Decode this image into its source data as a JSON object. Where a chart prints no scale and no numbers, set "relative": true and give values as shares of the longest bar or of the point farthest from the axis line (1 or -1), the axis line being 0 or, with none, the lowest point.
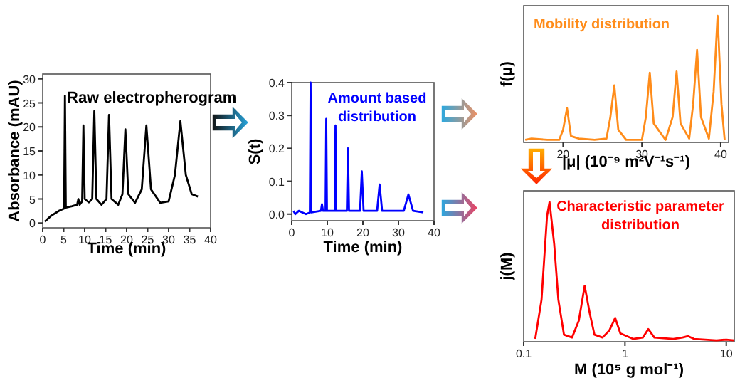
{
  "chart_data": [
    {
      "type": "line",
      "title": "Raw electropherogram",
      "xlabel": "Time (min)",
      "ylabel": "Absorbance (mAU)",
      "xlim": [
        0,
        40
      ],
      "ylim": [
        -1,
        31
      ],
      "xticks": [
        0,
        5,
        10,
        15,
        20,
        25,
        30,
        35,
        40
      ],
      "yticks": [
        0,
        5,
        10,
        15,
        20,
        25,
        30
      ],
      "series": [
        {
          "color": "#000000",
          "x": [
            0.5,
            2,
            4,
            5.1,
            5.3,
            5.5,
            7,
            8.2,
            8.5,
            8.8,
            9.4,
            9.7,
            10,
            11,
            11.8,
            12.3,
            12.8,
            14,
            15.2,
            15.8,
            16.4,
            18,
            19,
            19.7,
            20.4,
            22,
            23.6,
            24.7,
            25.8,
            28,
            30,
            31.5,
            32.8,
            34.1,
            35.5,
            37
          ],
          "values": [
            0.3,
            1.5,
            2.6,
            3,
            26.5,
            3.2,
            3.5,
            3.8,
            5,
            3.8,
            4.5,
            20.3,
            5,
            4.3,
            5,
            23.3,
            5,
            3.8,
            5,
            22.5,
            5,
            3.8,
            6,
            19.5,
            6,
            4.2,
            7,
            20.3,
            7,
            4.2,
            4.5,
            10,
            21.2,
            10,
            6,
            5.5
          ]
        }
      ]
    },
    {
      "type": "line",
      "title": "Amount based distribution",
      "xlabel": "Time (min)",
      "ylabel": "S(t)",
      "xlim": [
        0,
        40
      ],
      "ylim": [
        -0.02,
        0.4
      ],
      "xticks": [
        0,
        10,
        20,
        30,
        40
      ],
      "yticks": [
        {
          "value": 0,
          "label": "0.0"
        },
        0.1,
        0.2,
        0.3,
        0.4
      ],
      "series": [
        {
          "color": "#0000ff",
          "x": [
            0.5,
            1,
            2,
            3,
            4,
            5.1,
            5.3,
            5.5,
            8.2,
            8.5,
            8.8,
            9.5,
            9.7,
            9.9,
            12.1,
            12.3,
            12.5,
            15.5,
            15.8,
            16.1,
            19.2,
            19.7,
            20.2,
            24,
            24.7,
            25.4,
            31.5,
            32.8,
            34.1,
            37
          ],
          "values": [
            0.01,
            0,
            0.01,
            0.005,
            0,
            0.005,
            0.4,
            0.005,
            0.01,
            0.03,
            0.01,
            0.01,
            0.29,
            0.01,
            0.01,
            0.27,
            0.01,
            0.01,
            0.2,
            0.01,
            0.01,
            0.13,
            0.01,
            0.01,
            0.09,
            0.01,
            0.01,
            0.06,
            0.01,
            0.005
          ]
        }
      ]
    },
    {
      "type": "line",
      "relative": true,
      "title": "Mobility distribution",
      "xlabel": "|μ| (10⁻⁹ m²V⁻¹s⁻¹)",
      "ylabel": "f(μ)",
      "xlim": [
        15,
        41
      ],
      "xticks": [
        20,
        30,
        40
      ],
      "series": [
        {
          "color": "#ff8c1a",
          "x": [
            15.2,
            16,
            18,
            19.5,
            20,
            20.5,
            21,
            22,
            24,
            25.5,
            26,
            26.5,
            27,
            28,
            30,
            30.5,
            31,
            31.5,
            33,
            33.9,
            34.4,
            34.9,
            36,
            36.5,
            37,
            37.5,
            38.5,
            39.1,
            39.6,
            40.1,
            40.5
          ],
          "values": [
            0.02,
            0.03,
            0.02,
            0.02,
            0.1,
            0.27,
            0.05,
            0.03,
            0.02,
            0.03,
            0.2,
            0.45,
            0.1,
            0.02,
            0.02,
            0.2,
            0.55,
            0.15,
            0.02,
            0.2,
            0.56,
            0.15,
            0.03,
            0.3,
            0.73,
            0.2,
            0.03,
            0.4,
            1.0,
            0.3,
            0.02
          ]
        }
      ]
    },
    {
      "type": "line",
      "relative": true,
      "log": "x",
      "title": "Characteristic parameter distribution",
      "xlabel": "M (10⁵ g mol⁻¹)",
      "ylabel": "j(M)",
      "xlim": [
        0.1,
        12
      ],
      "xticks": [
        0.1,
        1,
        10
      ],
      "series": [
        {
          "color": "#ff0000",
          "x": [
            0.13,
            0.15,
            0.17,
            0.18,
            0.2,
            0.22,
            0.25,
            0.3,
            0.35,
            0.4,
            0.45,
            0.5,
            0.6,
            0.7,
            0.8,
            0.9,
            1.2,
            1.5,
            1.7,
            1.95,
            3,
            3.7,
            4.2,
            4.8,
            8,
            10,
            12
          ],
          "values": [
            0.02,
            0.3,
            0.9,
            1.0,
            0.7,
            0.3,
            0.05,
            0.03,
            0.15,
            0.4,
            0.2,
            0.05,
            0.03,
            0.08,
            0.17,
            0.06,
            0.02,
            0.03,
            0.09,
            0.03,
            0.02,
            0.03,
            0.04,
            0.02,
            0.01,
            0.015,
            0.01
          ]
        }
      ]
    }
  ]
}
